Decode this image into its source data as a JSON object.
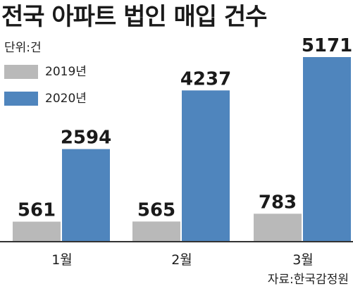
{
  "title": "전국 아파트 법인 매입 건수",
  "unit": "단위:건",
  "source": "자료:한국감정원",
  "colors": {
    "2019": "#b9b9b9",
    "2020": "#4f85bd",
    "axis": "#333333",
    "text": "#1a1a1a"
  },
  "chart_data": {
    "type": "bar",
    "title": "전국 아파트 법인 매입 건수",
    "unit": "단위:건",
    "categories": [
      "1월",
      "2월",
      "3월"
    ],
    "series": [
      {
        "name": "2019년",
        "values": [
          561,
          565,
          783
        ],
        "color": "#b9b9b9"
      },
      {
        "name": "2020년",
        "values": [
          2594,
          4237,
          5171
        ],
        "color": "#4f85bd"
      }
    ],
    "data_labels": true,
    "legend": "top-left",
    "grid": false
  }
}
